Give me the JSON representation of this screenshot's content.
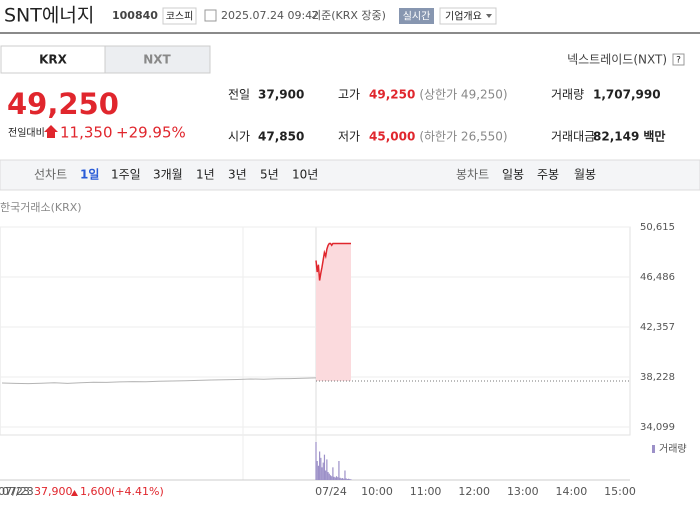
{
  "header": {
    "name": "SNT에너지",
    "code": "100840",
    "market": "코스피",
    "datetime": "2025.07.24 09:42",
    "basis": "기준(KRX 장중)",
    "realtime": "실시간",
    "company_info": "기업개요"
  },
  "tabs": [
    "KRX",
    "NXT"
  ],
  "nxt_link": "넥스트레이드(NXT)",
  "help": "?",
  "quote": {
    "price": "49,250",
    "change_label": "전일대비",
    "change": "11,350",
    "rate": "+29.95%"
  },
  "stats": [
    [
      {
        "label": "전일",
        "value": "37,900"
      },
      {
        "label": "고가",
        "value": "49,250",
        "note": "(상한가 49,250)"
      },
      {
        "label": "거래량",
        "value": "1,707,990"
      }
    ],
    [
      {
        "label": "시가",
        "value": "47,850"
      },
      {
        "label": "저가",
        "value": "45,000",
        "note": "(하한가 26,550)"
      },
      {
        "label": "거래대금",
        "value": "82,149",
        "unit": "백만"
      }
    ]
  ],
  "toolbar": {
    "line_label": "선차트",
    "line_periods": [
      "1일",
      "1주일",
      "3개월",
      "1년",
      "3년",
      "5년",
      "10년"
    ],
    "candle_label": "봉차트",
    "candle_periods": [
      "일봉",
      "주봉",
      "월봉"
    ]
  },
  "chart_data": {
    "type": "line",
    "source": "한국거래소(KRX)",
    "ylim": [
      34099,
      50615
    ],
    "yticks": [
      {
        "value": 50615,
        "label": "50,615"
      },
      {
        "value": 46486,
        "label": "46,486"
      },
      {
        "value": 42357,
        "label": "42,357"
      },
      {
        "value": 38228,
        "label": "38,228"
      },
      {
        "value": 34099,
        "label": "34,099"
      }
    ],
    "reference": 37900,
    "series": [
      {
        "name": "07/23",
        "color": "#b4b4b4",
        "values": [
          37730,
          37700,
          37680,
          37720,
          37750,
          37700,
          37760,
          37800,
          37780,
          37820,
          37850,
          37830,
          37880,
          37900,
          37920,
          37950,
          37980,
          38000,
          38020,
          38060,
          38050,
          38080,
          38100,
          38130,
          38150
        ]
      },
      {
        "name": "07/24",
        "color": "#e0262d",
        "values": [
          47850,
          46900,
          47500,
          46200,
          46800,
          47300,
          47900,
          48500,
          48200,
          48800,
          49100,
          49250,
          49250,
          49100,
          49250,
          49250,
          49250,
          49250,
          49250,
          49250,
          49250,
          49250,
          49250,
          49250,
          49250,
          49250,
          49250,
          49250,
          49250,
          49250
        ]
      }
    ],
    "x_labels": [
      "10:00",
      "11:00",
      "12:00",
      "13:00",
      "14:00",
      "15:00"
    ],
    "volume": {
      "name": "거래량",
      "color": "#9c90c8",
      "values": [
        120000,
        60000,
        45000,
        90000,
        70000,
        40000,
        55000,
        80000,
        30000,
        65000,
        25000,
        20000,
        15000,
        12000,
        40000,
        10000,
        8000,
        12000,
        9000,
        60000,
        7000,
        5000,
        6000,
        4000,
        30000,
        5000,
        3000,
        4000,
        3000,
        2000
      ]
    }
  },
  "footer": {
    "date": "07/23",
    "close": "37,900",
    "change": "1,600",
    "rate": "(+4.41%)"
  }
}
